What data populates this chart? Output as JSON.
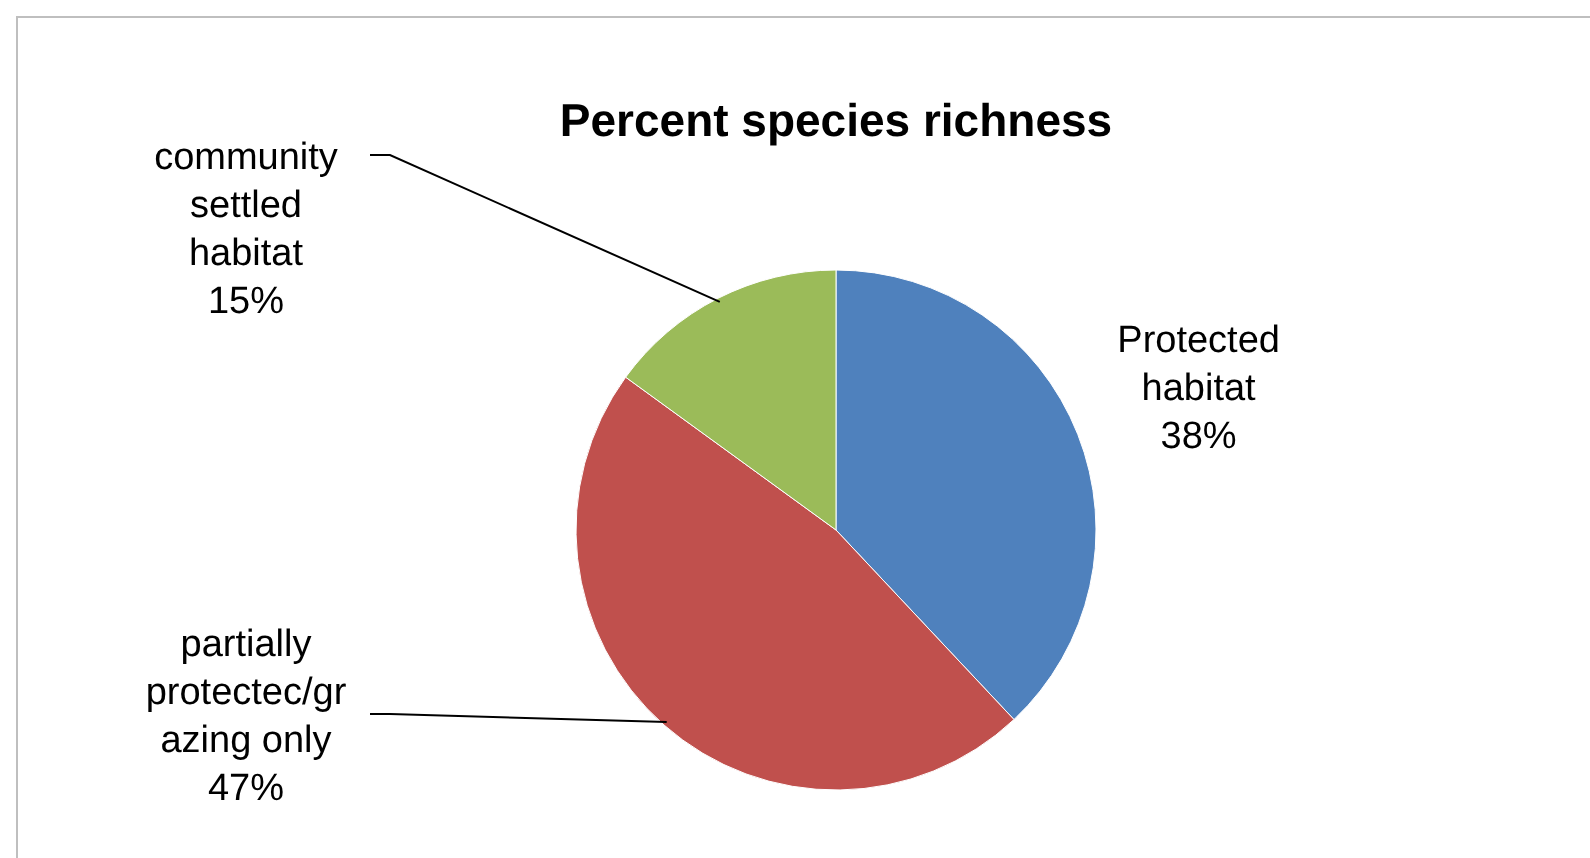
{
  "chart_data": {
    "type": "pie",
    "title": "Percent species richness",
    "categories": [
      "Protected habitat",
      "partially protectec/grazing only",
      "community settled habitat"
    ],
    "values": [
      38,
      47,
      15
    ],
    "colors": [
      "#4f81bd",
      "#c0504d",
      "#9bbb59"
    ],
    "value_labels": [
      "38%",
      "47%",
      "15%"
    ]
  }
}
